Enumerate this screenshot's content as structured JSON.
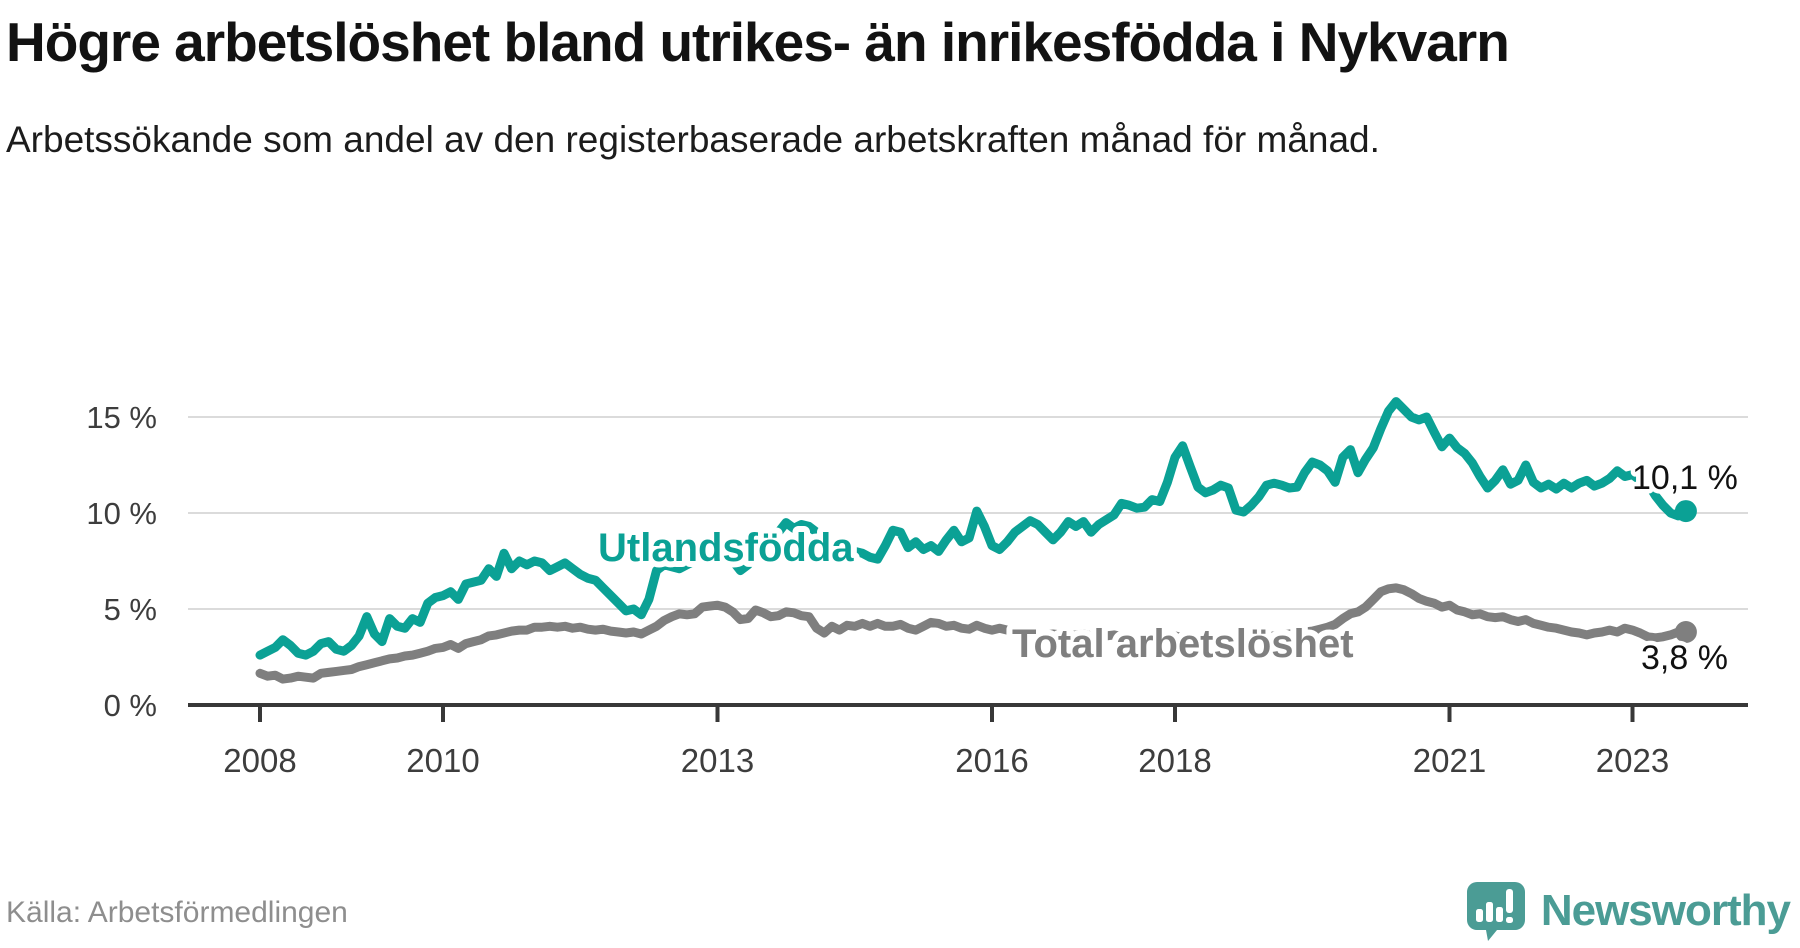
{
  "header": {
    "title": "Högre arbetslöshet bland utrikes- än inrikesfödda i Nykvarn",
    "subtitle": "Arbetssökande som andel av den registerbaserade arbetskraften månad för månad."
  },
  "footer": {
    "source": "Källa: Arbetsförmedlingen",
    "brand_name": "Newsworthy",
    "brand_icon": "newsworthy-speech-bubble-bar-chart-icon",
    "brand_color": "#4b9c95"
  },
  "chart_data": {
    "type": "line",
    "title": "Högre arbetslöshet bland utrikes- än inrikesfödda i Nykvarn",
    "xlabel": "",
    "ylabel": "Arbetssökande som andel av den registerbaserade arbetskraften",
    "x_unit": "monthly, January 2008 – August 2023 (decimal years)",
    "grid": "horizontal only",
    "ylim": [
      0,
      16.5
    ],
    "y_axis": {
      "ticks": [
        {
          "value": 15,
          "label": "15 %"
        },
        {
          "value": 10,
          "label": "10 %"
        },
        {
          "value": 5,
          "label": "5 %"
        },
        {
          "value": 0,
          "label": "0 %"
        }
      ]
    },
    "x_axis": {
      "start_year": 2008,
      "ticks": [
        {
          "value": 2008,
          "label": "2008"
        },
        {
          "value": 2010,
          "label": "2010"
        },
        {
          "value": 2013,
          "label": "2013"
        },
        {
          "value": 2016,
          "label": "2016"
        },
        {
          "value": 2018,
          "label": "2018"
        },
        {
          "value": 2021,
          "label": "2021"
        },
        {
          "value": 2023,
          "label": "2023"
        }
      ]
    },
    "series": [
      {
        "id": "total",
        "label": "Total arbetslöshet",
        "color": "#7f7f7f",
        "end_label": "3,8 %",
        "values": [
          1.65,
          1.5,
          1.55,
          1.35,
          1.4,
          1.5,
          1.45,
          1.4,
          1.65,
          1.7,
          1.75,
          1.8,
          1.85,
          2.0,
          2.1,
          2.2,
          2.3,
          2.4,
          2.45,
          2.55,
          2.6,
          2.7,
          2.8,
          2.95,
          3.0,
          3.15,
          2.95,
          3.2,
          3.3,
          3.4,
          3.6,
          3.65,
          3.75,
          3.85,
          3.9,
          3.9,
          4.05,
          4.05,
          4.1,
          4.05,
          4.1,
          4.0,
          4.05,
          3.95,
          3.9,
          3.95,
          3.85,
          3.8,
          3.75,
          3.8,
          3.7,
          3.9,
          4.1,
          4.4,
          4.6,
          4.75,
          4.7,
          4.75,
          5.1,
          5.15,
          5.2,
          5.1,
          4.85,
          4.45,
          4.5,
          4.95,
          4.8,
          4.6,
          4.65,
          4.85,
          4.8,
          4.65,
          4.6,
          4.0,
          3.75,
          4.1,
          3.9,
          4.15,
          4.1,
          4.25,
          4.1,
          4.25,
          4.1,
          4.1,
          4.2,
          4.0,
          3.9,
          4.1,
          4.3,
          4.25,
          4.1,
          4.15,
          4.0,
          3.95,
          4.15,
          4.0,
          3.9,
          4.0,
          3.9,
          3.75,
          3.7,
          3.65,
          3.6,
          3.65,
          3.7,
          3.65,
          3.6,
          3.65,
          3.7,
          3.6,
          3.55,
          3.6,
          3.65,
          3.55,
          3.5,
          3.55,
          3.6,
          3.55,
          3.5,
          3.55,
          3.6,
          3.5,
          3.45,
          3.5,
          3.55,
          3.5,
          3.45,
          3.5,
          3.55,
          3.5,
          3.45,
          3.5,
          3.55,
          3.6,
          3.65,
          3.7,
          3.75,
          3.8,
          3.85,
          3.95,
          4.05,
          4.2,
          4.5,
          4.75,
          4.85,
          5.1,
          5.5,
          5.9,
          6.05,
          6.1,
          6.0,
          5.8,
          5.55,
          5.4,
          5.3,
          5.1,
          5.2,
          4.95,
          4.85,
          4.7,
          4.75,
          4.6,
          4.55,
          4.6,
          4.45,
          4.35,
          4.45,
          4.25,
          4.15,
          4.05,
          4.0,
          3.9,
          3.8,
          3.75,
          3.65,
          3.75,
          3.8,
          3.9,
          3.8,
          4.0,
          3.9,
          3.75,
          3.55,
          3.5,
          3.55,
          3.65,
          3.8,
          3.8
        ]
      },
      {
        "id": "utlandsfodda",
        "label": "Utlandsfödda",
        "color": "#0ba195",
        "end_label": "10,1 %",
        "values": [
          2.6,
          2.8,
          3.0,
          3.4,
          3.1,
          2.7,
          2.6,
          2.8,
          3.2,
          3.3,
          2.9,
          2.8,
          3.1,
          3.6,
          4.6,
          3.7,
          3.3,
          4.5,
          4.1,
          4.0,
          4.5,
          4.3,
          5.3,
          5.6,
          5.7,
          5.9,
          5.5,
          6.3,
          6.4,
          6.5,
          7.1,
          6.7,
          7.9,
          7.1,
          7.5,
          7.3,
          7.5,
          7.4,
          7.0,
          7.2,
          7.4,
          7.1,
          6.8,
          6.6,
          6.5,
          6.1,
          5.7,
          5.3,
          4.9,
          5.0,
          4.7,
          5.5,
          7.0,
          7.3,
          7.2,
          7.1,
          7.3,
          7.5,
          7.7,
          7.6,
          7.9,
          8.1,
          7.5,
          7.0,
          7.3,
          7.8,
          8.2,
          8.6,
          9.0,
          9.5,
          9.2,
          9.4,
          9.3,
          9.0,
          8.8,
          8.5,
          8.3,
          8.1,
          8.0,
          7.9,
          7.7,
          7.6,
          8.3,
          9.1,
          9.0,
          8.2,
          8.5,
          8.1,
          8.3,
          8.0,
          8.6,
          9.1,
          8.5,
          8.7,
          10.1,
          9.3,
          8.3,
          8.1,
          8.5,
          9.0,
          9.3,
          9.6,
          9.4,
          9.0,
          8.6,
          9.0,
          9.55,
          9.3,
          9.55,
          9.0,
          9.4,
          9.65,
          9.9,
          10.5,
          10.4,
          10.25,
          10.3,
          10.7,
          10.6,
          11.6,
          12.9,
          13.5,
          12.4,
          11.35,
          11.05,
          11.2,
          11.45,
          11.3,
          10.15,
          10.05,
          10.4,
          10.85,
          11.45,
          11.55,
          11.45,
          11.3,
          11.35,
          12.1,
          12.65,
          12.5,
          12.2,
          11.6,
          12.9,
          13.3,
          12.1,
          12.8,
          13.4,
          14.4,
          15.3,
          15.8,
          15.4,
          15.0,
          14.85,
          15.0,
          14.2,
          13.45,
          13.9,
          13.4,
          13.1,
          12.6,
          11.9,
          11.3,
          11.7,
          12.25,
          11.5,
          11.7,
          12.5,
          11.6,
          11.3,
          11.5,
          11.25,
          11.55,
          11.3,
          11.55,
          11.7,
          11.4,
          11.55,
          11.8,
          12.2,
          11.9,
          12.0,
          11.7,
          11.55,
          10.9,
          10.4,
          10.0,
          9.85,
          10.1
        ]
      }
    ]
  }
}
